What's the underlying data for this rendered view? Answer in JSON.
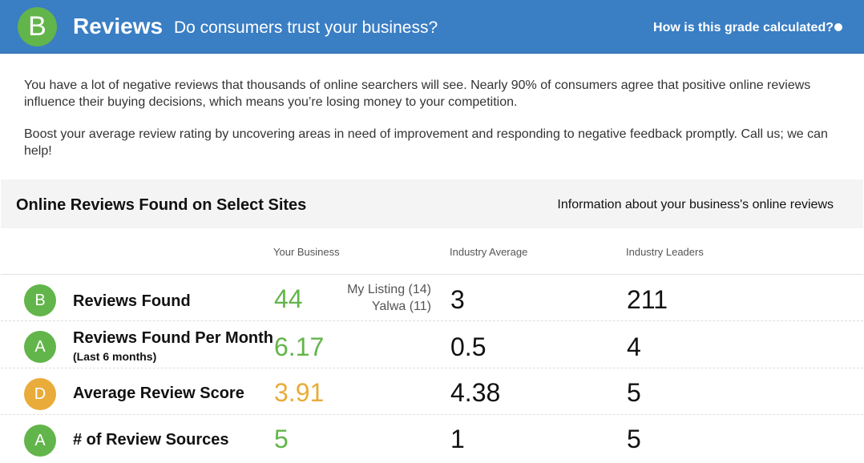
{
  "header": {
    "grade": "B",
    "title": "Reviews",
    "subtitle": "Do consumers trust your business?",
    "how_link": "How is this grade calculated?",
    "colors": {
      "background": "#3a7ec4",
      "grade_green": "#62b54a"
    }
  },
  "description": {
    "paragraph_1": "You have a lot of negative reviews that thousands of online searchers will see. Nearly 90% of consumers agree that positive online reviews influence their buying decisions, which means you’re losing money to your competition.",
    "paragraph_2": "Boost your average review rating by uncovering areas in need of improvement and responding to negative feedback promptly. Call us; we can help!"
  },
  "section": {
    "title": "Online Reviews Found on Select Sites",
    "info": "Information about your business's online reviews"
  },
  "columns": {
    "your_business": "Your Business",
    "industry_average": "Industry Average",
    "industry_leaders": "Industry Leaders"
  },
  "rows": [
    {
      "grade": "B",
      "grade_color": "#62b54a",
      "metric": "Reviews Found",
      "sub": "",
      "your_value": "44",
      "sources": [
        "My Listing (14)",
        "Yalwa (11)"
      ],
      "industry_average": "3",
      "industry_leaders": "211"
    },
    {
      "grade": "A",
      "grade_color": "#62b54a",
      "metric": "Reviews Found Per Month",
      "sub": "(Last 6 months)",
      "your_value": "6.17",
      "industry_average": "0.5",
      "industry_leaders": "4"
    },
    {
      "grade": "D",
      "grade_color": "#e9ac3a",
      "metric": "Average Review Score",
      "sub": "",
      "your_value": "3.91",
      "industry_average": "4.38",
      "industry_leaders": "5"
    },
    {
      "grade": "A",
      "grade_color": "#62b54a",
      "metric": "# of Review Sources",
      "sub": "",
      "your_value": "5",
      "industry_average": "1",
      "industry_leaders": "5"
    }
  ]
}
